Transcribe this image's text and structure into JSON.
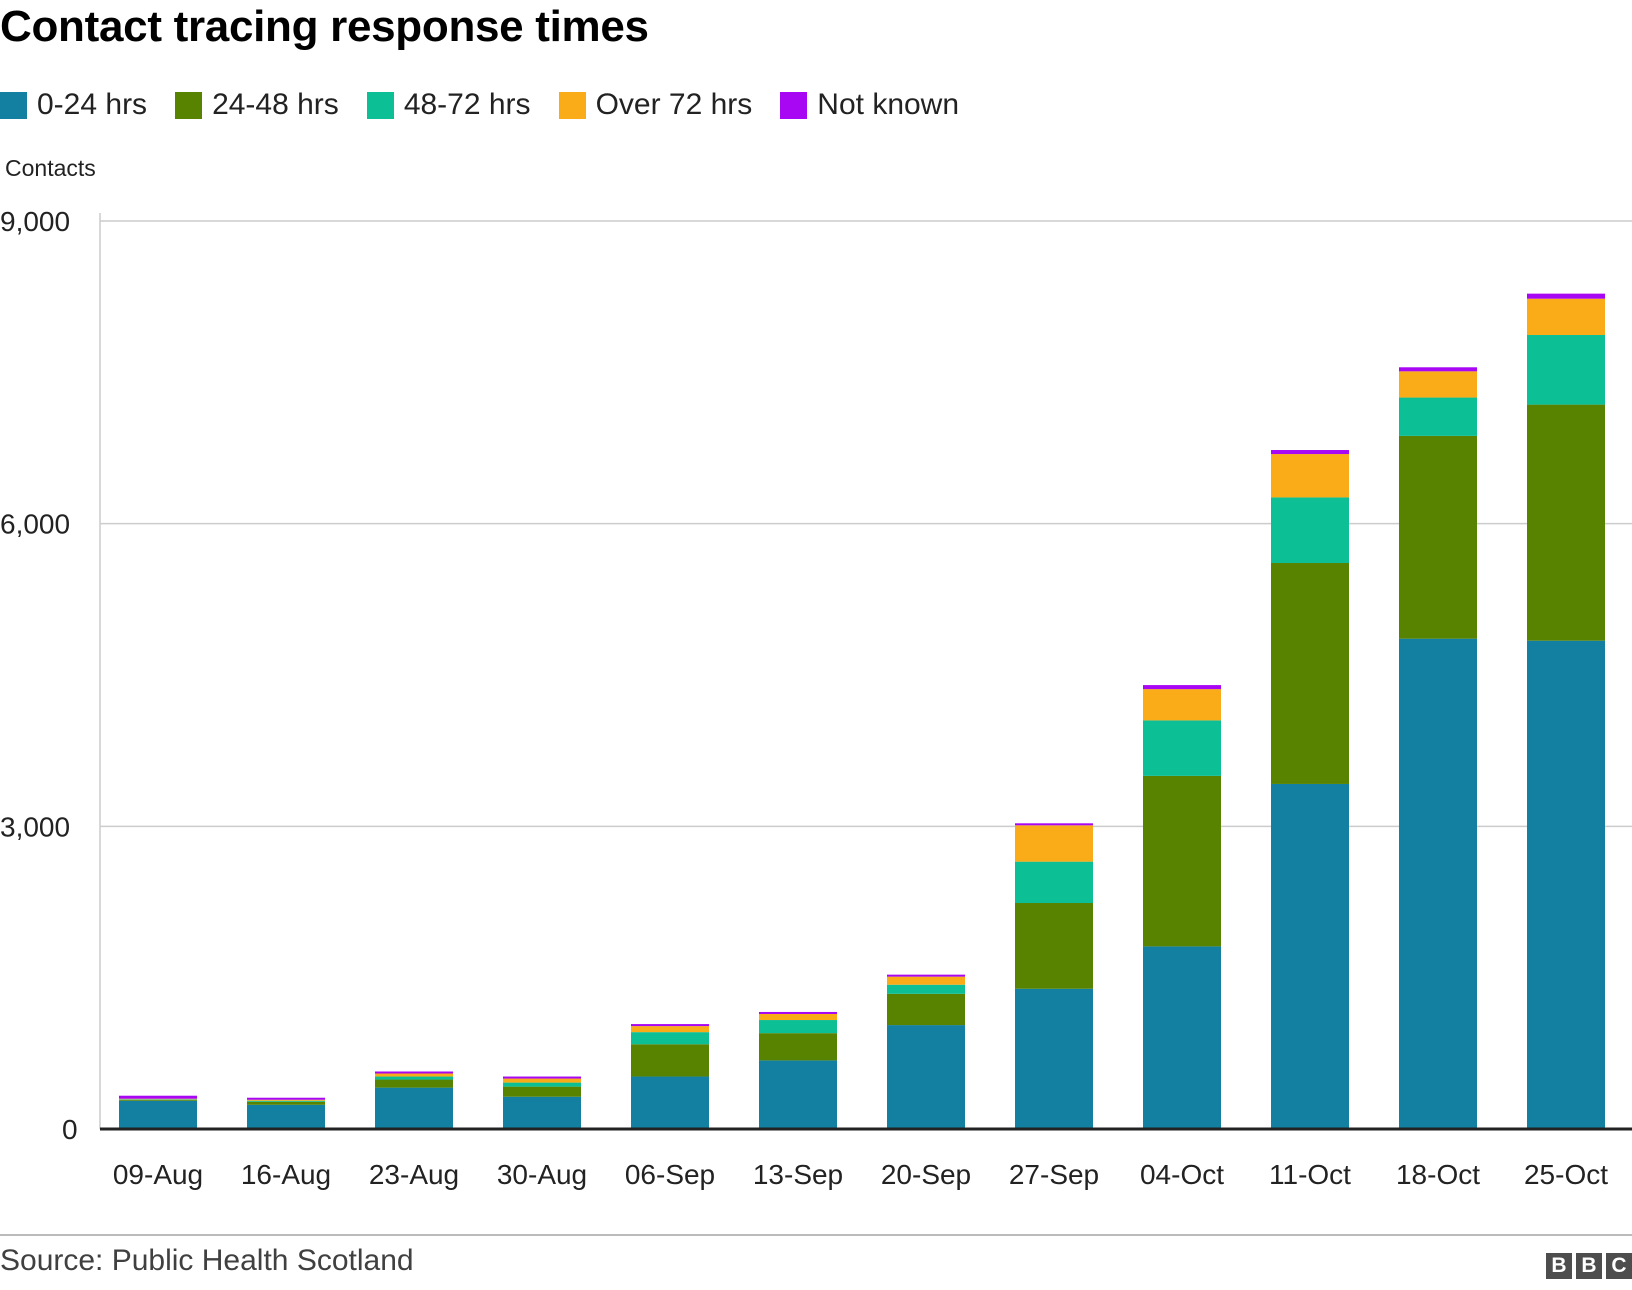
{
  "chart_data": {
    "type": "bar",
    "stacked": true,
    "title": "Contact tracing response times",
    "ylabel": "Contacts",
    "xlabel": "",
    "ylim": [
      0,
      9000
    ],
    "yticks": [
      0,
      3000,
      6000,
      9000
    ],
    "ytick_labels": [
      "0",
      "3,000",
      "6,000",
      "9,000"
    ],
    "grid": true,
    "legend_position": "top-left",
    "categories": [
      "09-Aug",
      "16-Aug",
      "23-Aug",
      "30-Aug",
      "06-Sep",
      "13-Sep",
      "20-Sep",
      "27-Sep",
      "04-Oct",
      "11-Oct",
      "18-Oct",
      "25-Oct"
    ],
    "series": [
      {
        "name": "0-24 hrs",
        "color": "#1380A1",
        "values": [
          280,
          240,
          410,
          320,
          520,
          680,
          1030,
          1390,
          1810,
          3420,
          4860,
          4840
        ]
      },
      {
        "name": "24-48 hrs",
        "color": "#588300",
        "values": [
          10,
          30,
          80,
          100,
          320,
          270,
          310,
          850,
          1690,
          2190,
          2010,
          2340
        ]
      },
      {
        "name": "48-72 hrs",
        "color": "#0CBF95",
        "values": [
          5,
          10,
          30,
          40,
          120,
          130,
          90,
          410,
          550,
          650,
          380,
          690
        ]
      },
      {
        "name": "Over 72 hrs",
        "color": "#FAAB18",
        "values": [
          5,
          10,
          30,
          40,
          60,
          60,
          80,
          360,
          310,
          430,
          260,
          360
        ]
      },
      {
        "name": "Not known",
        "color": "#A707F2",
        "values": [
          30,
          20,
          20,
          20,
          20,
          20,
          20,
          20,
          40,
          40,
          40,
          50
        ]
      }
    ],
    "source": "Source: Public Health Scotland"
  },
  "branding": {
    "logo_letters": [
      "B",
      "B",
      "C"
    ]
  }
}
